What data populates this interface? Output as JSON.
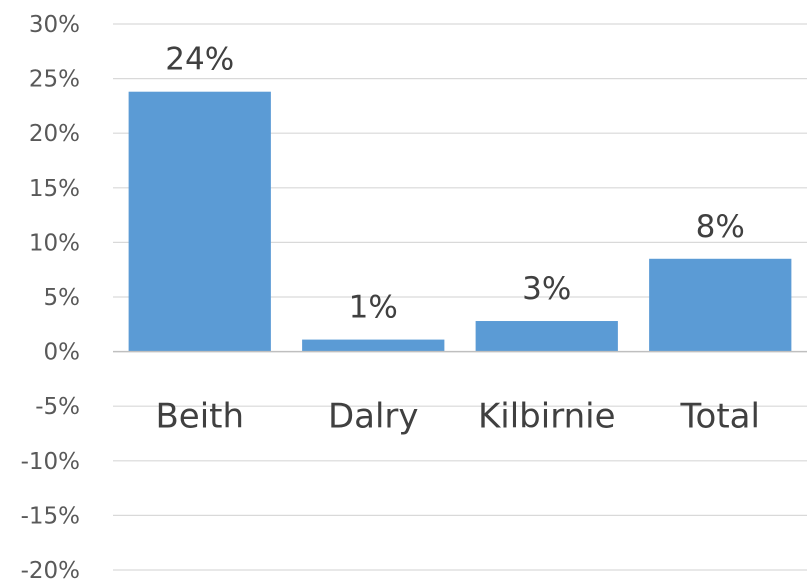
{
  "chart_data": {
    "type": "bar",
    "categories": [
      "Beith",
      "Dalry",
      "Kilbirnie",
      "Total"
    ],
    "values": [
      0.238,
      0.011,
      0.028,
      0.085
    ],
    "data_labels": [
      "24%",
      "1%",
      "3%",
      "8%"
    ],
    "title": "",
    "xlabel": "",
    "ylabel": "",
    "ylim": [
      -0.2,
      0.3
    ],
    "y_ticks": [
      0.3,
      0.25,
      0.2,
      0.15,
      0.1,
      0.05,
      0,
      -0.05,
      -0.1,
      -0.15,
      -0.2
    ],
    "y_tick_labels": [
      "30%",
      "25%",
      "20%",
      "15%",
      "10%",
      "5%",
      "0%",
      "-5%",
      "-10%",
      "-15%",
      "-20%"
    ],
    "grid": true,
    "legend": "none",
    "colors": {
      "bar": "#5b9bd5",
      "grid": "#d9d9d9",
      "axis": "#bfbfbf"
    }
  }
}
